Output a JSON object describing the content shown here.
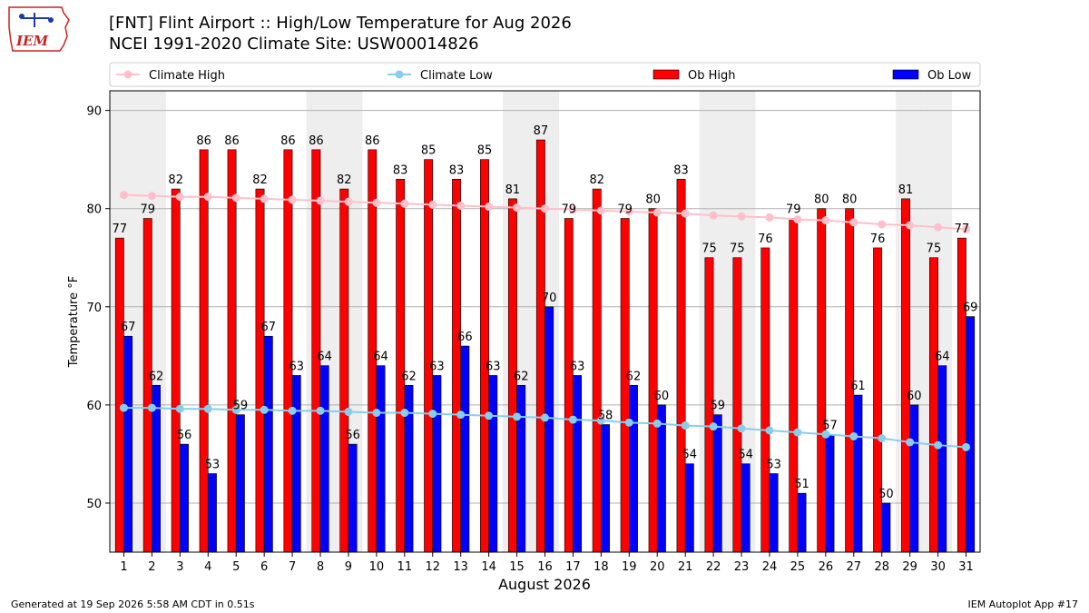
{
  "header": {
    "title_line1": "[FNT] Flint Airport :: High/Low Temperature for Aug 2026",
    "title_line2": "NCEI 1991-2020 Climate Site: USW00014826"
  },
  "logo": {
    "text": "IEM"
  },
  "footer": {
    "generated": "Generated at 19 Sep 2026 5:58 AM CDT in 0.51s",
    "app": "IEM Autoplot App #17"
  },
  "colors": {
    "ob_high": "#ff0000",
    "ob_low": "#0000ff",
    "climate_high": "#ffc0cb",
    "climate_low": "#87ceeb",
    "weekend_shade": "#eeeeee"
  },
  "chart_data": {
    "type": "bar",
    "xlabel": "August 2026",
    "ylabel": "Temperature °F",
    "ylim": [
      45,
      92
    ],
    "yticks": [
      50,
      60,
      70,
      80,
      90
    ],
    "grid": true,
    "legend_position": "top",
    "categories": [
      "1",
      "2",
      "3",
      "4",
      "5",
      "6",
      "7",
      "8",
      "9",
      "10",
      "11",
      "12",
      "13",
      "14",
      "15",
      "16",
      "17",
      "18",
      "19",
      "20",
      "21",
      "22",
      "23",
      "24",
      "25",
      "26",
      "27",
      "28",
      "29",
      "30",
      "31"
    ],
    "shaded_days": [
      1,
      2,
      8,
      9,
      15,
      16,
      22,
      23,
      29,
      30
    ],
    "series": [
      {
        "name": "Ob High",
        "kind": "bar",
        "values": [
          77,
          79,
          82,
          86,
          86,
          82,
          86,
          86,
          82,
          86,
          83,
          85,
          83,
          85,
          81,
          87,
          79,
          82,
          79,
          80,
          83,
          75,
          75,
          76,
          79,
          80,
          80,
          76,
          81,
          75,
          77
        ]
      },
      {
        "name": "Ob Low",
        "kind": "bar",
        "values": [
          67,
          62,
          56,
          53,
          59,
          67,
          63,
          64,
          56,
          64,
          62,
          63,
          66,
          63,
          62,
          70,
          63,
          58,
          62,
          60,
          54,
          59,
          54,
          53,
          51,
          57,
          61,
          50,
          60,
          64,
          69
        ]
      },
      {
        "name": "Climate High",
        "kind": "line",
        "values": [
          81.4,
          81.3,
          81.2,
          81.2,
          81.1,
          81.0,
          80.9,
          80.8,
          80.7,
          80.6,
          80.5,
          80.4,
          80.3,
          80.2,
          80.1,
          80.0,
          79.9,
          79.8,
          79.7,
          79.6,
          79.5,
          79.3,
          79.2,
          79.1,
          78.9,
          78.8,
          78.6,
          78.4,
          78.3,
          78.1,
          77.9
        ]
      },
      {
        "name": "Climate Low",
        "kind": "line",
        "values": [
          59.7,
          59.7,
          59.6,
          59.6,
          59.5,
          59.5,
          59.4,
          59.4,
          59.3,
          59.2,
          59.2,
          59.1,
          59.0,
          58.9,
          58.8,
          58.7,
          58.5,
          58.4,
          58.2,
          58.1,
          57.9,
          57.8,
          57.6,
          57.4,
          57.2,
          57.0,
          56.8,
          56.6,
          56.2,
          55.9,
          55.7
        ]
      }
    ]
  }
}
